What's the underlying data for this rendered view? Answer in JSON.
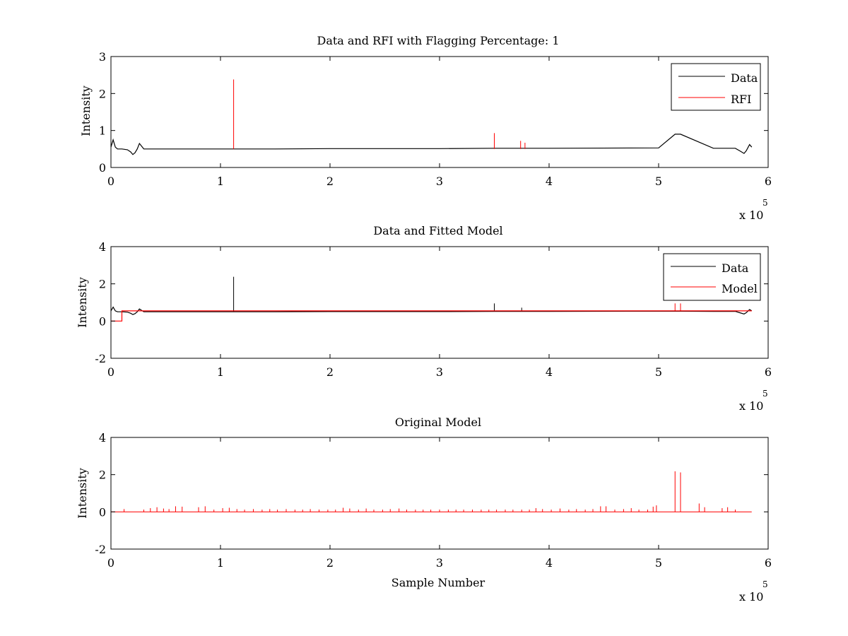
{
  "chart_data": [
    {
      "type": "line",
      "title": "Data and RFI with Flagging Percentage: 1",
      "xlabel": "",
      "ylabel": "Intensity",
      "xlim": [
        0,
        6
      ],
      "ylim": [
        0,
        3
      ],
      "xticks": [
        0,
        1,
        2,
        3,
        4,
        5,
        6
      ],
      "yticks": [
        0,
        1,
        2,
        3
      ],
      "x_multiplier": "x 10",
      "x_exponent": "5",
      "legend_position": "top-right",
      "series": [
        {
          "name": "Data",
          "color": "#000000",
          "x": [
            0,
            0.02,
            0.04,
            0.06,
            0.1,
            0.15,
            0.18,
            0.2,
            0.22,
            0.24,
            0.26,
            0.3,
            0.5,
            1.0,
            1.12,
            1.5,
            2.0,
            3.0,
            3.5,
            3.75,
            4.0,
            5.0,
            5.15,
            5.2,
            5.5,
            5.7,
            5.74,
            5.78,
            5.8,
            5.83,
            5.85
          ],
          "y": [
            0.55,
            0.75,
            0.55,
            0.5,
            0.5,
            0.48,
            0.42,
            0.35,
            0.4,
            0.5,
            0.65,
            0.5,
            0.5,
            0.5,
            0.5,
            0.5,
            0.51,
            0.51,
            0.52,
            0.52,
            0.52,
            0.53,
            0.9,
            0.9,
            0.52,
            0.52,
            0.45,
            0.38,
            0.45,
            0.62,
            0.55
          ]
        },
        {
          "name": "RFI",
          "color": "#ff0000",
          "spikes": [
            {
              "x": 1.12,
              "y": 2.38
            },
            {
              "x": 3.5,
              "y": 0.93
            },
            {
              "x": 3.74,
              "y": 0.72
            },
            {
              "x": 3.78,
              "y": 0.67
            }
          ]
        }
      ]
    },
    {
      "type": "line",
      "title": "Data and Fitted Model",
      "xlabel": "",
      "ylabel": "Intensity",
      "xlim": [
        0,
        6
      ],
      "ylim": [
        -2,
        4
      ],
      "xticks": [
        0,
        1,
        2,
        3,
        4,
        5,
        6
      ],
      "yticks": [
        -2,
        0,
        2,
        4
      ],
      "x_multiplier": "x 10",
      "x_exponent": "5",
      "legend_position": "top-right",
      "series": [
        {
          "name": "Data",
          "color": "#000000",
          "x": [
            0,
            0.02,
            0.04,
            0.06,
            0.1,
            0.15,
            0.18,
            0.2,
            0.22,
            0.24,
            0.26,
            0.3,
            0.5,
            1.0,
            1.12,
            1.5,
            2.0,
            3.0,
            3.5,
            3.75,
            4.0,
            5.0,
            5.15,
            5.2,
            5.5,
            5.7,
            5.74,
            5.78,
            5.8,
            5.83,
            5.85
          ],
          "y": [
            0.55,
            0.75,
            0.55,
            0.5,
            0.5,
            0.48,
            0.42,
            0.35,
            0.4,
            0.5,
            0.65,
            0.5,
            0.5,
            0.5,
            0.5,
            0.5,
            0.51,
            0.51,
            0.52,
            0.52,
            0.52,
            0.53,
            0.53,
            0.53,
            0.52,
            0.52,
            0.45,
            0.38,
            0.45,
            0.62,
            0.55
          ],
          "spikes": [
            {
              "x": 1.12,
              "y": 2.38
            },
            {
              "x": 3.5,
              "y": 0.95
            },
            {
              "x": 3.75,
              "y": 0.72
            }
          ]
        },
        {
          "name": "Model",
          "color": "#ff0000",
          "x": [
            0,
            0.1,
            0.1,
            5.85
          ],
          "y": [
            0.0,
            0.0,
            0.55,
            0.55
          ],
          "spikes": [
            {
              "x": 5.15,
              "y": 0.95
            },
            {
              "x": 5.2,
              "y": 0.95
            }
          ]
        }
      ]
    },
    {
      "type": "line",
      "title": "Original Model",
      "xlabel": "Sample Number",
      "ylabel": "Intensity",
      "xlim": [
        0,
        6
      ],
      "ylim": [
        -2,
        4
      ],
      "xticks": [
        0,
        1,
        2,
        3,
        4,
        5,
        6
      ],
      "yticks": [
        -2,
        0,
        2,
        4
      ],
      "x_multiplier": "x 10",
      "x_exponent": "5",
      "series": [
        {
          "color": "#ff0000",
          "baseline": 0.0,
          "x_end": 5.85,
          "spikes": [
            {
              "x": 0.12,
              "y": 0.15
            },
            {
              "x": 0.3,
              "y": 0.12
            },
            {
              "x": 0.36,
              "y": 0.2
            },
            {
              "x": 0.42,
              "y": 0.25
            },
            {
              "x": 0.48,
              "y": 0.18
            },
            {
              "x": 0.53,
              "y": 0.15
            },
            {
              "x": 0.59,
              "y": 0.3
            },
            {
              "x": 0.65,
              "y": 0.28
            },
            {
              "x": 0.8,
              "y": 0.25
            },
            {
              "x": 0.86,
              "y": 0.3
            },
            {
              "x": 0.94,
              "y": 0.12
            },
            {
              "x": 1.02,
              "y": 0.2
            },
            {
              "x": 1.08,
              "y": 0.22
            },
            {
              "x": 1.15,
              "y": 0.15
            },
            {
              "x": 1.22,
              "y": 0.12
            },
            {
              "x": 1.3,
              "y": 0.15
            },
            {
              "x": 1.38,
              "y": 0.12
            },
            {
              "x": 1.45,
              "y": 0.15
            },
            {
              "x": 1.52,
              "y": 0.12
            },
            {
              "x": 1.6,
              "y": 0.15
            },
            {
              "x": 1.68,
              "y": 0.12
            },
            {
              "x": 1.75,
              "y": 0.12
            },
            {
              "x": 1.82,
              "y": 0.15
            },
            {
              "x": 1.9,
              "y": 0.12
            },
            {
              "x": 1.98,
              "y": 0.12
            },
            {
              "x": 2.05,
              "y": 0.12
            },
            {
              "x": 2.12,
              "y": 0.22
            },
            {
              "x": 2.18,
              "y": 0.18
            },
            {
              "x": 2.26,
              "y": 0.12
            },
            {
              "x": 2.33,
              "y": 0.18
            },
            {
              "x": 2.4,
              "y": 0.12
            },
            {
              "x": 2.48,
              "y": 0.12
            },
            {
              "x": 2.55,
              "y": 0.15
            },
            {
              "x": 2.63,
              "y": 0.18
            },
            {
              "x": 2.7,
              "y": 0.12
            },
            {
              "x": 2.78,
              "y": 0.12
            },
            {
              "x": 2.85,
              "y": 0.12
            },
            {
              "x": 2.92,
              "y": 0.12
            },
            {
              "x": 3.0,
              "y": 0.12
            },
            {
              "x": 3.08,
              "y": 0.12
            },
            {
              "x": 3.15,
              "y": 0.12
            },
            {
              "x": 3.22,
              "y": 0.12
            },
            {
              "x": 3.3,
              "y": 0.12
            },
            {
              "x": 3.38,
              "y": 0.12
            },
            {
              "x": 3.45,
              "y": 0.12
            },
            {
              "x": 3.52,
              "y": 0.12
            },
            {
              "x": 3.6,
              "y": 0.12
            },
            {
              "x": 3.67,
              "y": 0.12
            },
            {
              "x": 3.75,
              "y": 0.12
            },
            {
              "x": 3.82,
              "y": 0.12
            },
            {
              "x": 3.88,
              "y": 0.2
            },
            {
              "x": 3.94,
              "y": 0.15
            },
            {
              "x": 4.02,
              "y": 0.12
            },
            {
              "x": 4.1,
              "y": 0.18
            },
            {
              "x": 4.18,
              "y": 0.12
            },
            {
              "x": 4.25,
              "y": 0.15
            },
            {
              "x": 4.33,
              "y": 0.12
            },
            {
              "x": 4.4,
              "y": 0.15
            },
            {
              "x": 4.47,
              "y": 0.3
            },
            {
              "x": 4.52,
              "y": 0.3
            },
            {
              "x": 4.6,
              "y": 0.12
            },
            {
              "x": 4.68,
              "y": 0.15
            },
            {
              "x": 4.75,
              "y": 0.2
            },
            {
              "x": 4.82,
              "y": 0.12
            },
            {
              "x": 4.9,
              "y": 0.12
            },
            {
              "x": 4.95,
              "y": 0.28
            },
            {
              "x": 4.98,
              "y": 0.35
            },
            {
              "x": 5.15,
              "y": 2.18
            },
            {
              "x": 5.2,
              "y": 2.12
            },
            {
              "x": 5.37,
              "y": 0.45
            },
            {
              "x": 5.42,
              "y": 0.25
            },
            {
              "x": 5.58,
              "y": 0.2
            },
            {
              "x": 5.63,
              "y": 0.25
            },
            {
              "x": 5.7,
              "y": 0.12
            }
          ]
        }
      ]
    }
  ]
}
